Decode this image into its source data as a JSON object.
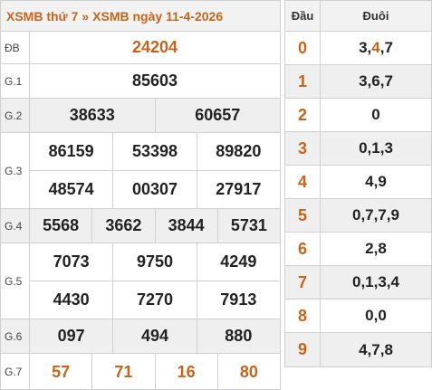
{
  "header": {
    "link1": "XSMB thứ 7",
    "separator": "»",
    "link2": "XSMB ngày 11-4-2026"
  },
  "prizes": [
    {
      "label": "ĐB",
      "lines": [
        [
          "24204"
        ]
      ],
      "special": true
    },
    {
      "label": "G.1",
      "lines": [
        [
          "85603"
        ]
      ]
    },
    {
      "label": "G.2",
      "lines": [
        [
          "38633",
          "60657"
        ]
      ],
      "shade": true
    },
    {
      "label": "G.3",
      "lines": [
        [
          "86159",
          "53398",
          "89820"
        ],
        [
          "48574",
          "00307",
          "27917"
        ]
      ]
    },
    {
      "label": "G.4",
      "lines": [
        [
          "5568",
          "3662",
          "3844",
          "5731"
        ]
      ],
      "shade": true
    },
    {
      "label": "G.5",
      "lines": [
        [
          "7073",
          "9750",
          "4249"
        ],
        [
          "4430",
          "7270",
          "7913"
        ]
      ]
    },
    {
      "label": "G.6",
      "lines": [
        [
          "097",
          "494",
          "880"
        ]
      ],
      "shade": true
    },
    {
      "label": "G.7",
      "lines": [
        [
          "57",
          "71",
          "16",
          "80"
        ]
      ],
      "g7": true
    }
  ],
  "loto": {
    "head_label": "Đầu",
    "tail_label": "Đuôi",
    "rows": [
      {
        "head": "0",
        "tail": [
          {
            "t": "3,"
          },
          {
            "t": "4",
            "hl": true
          },
          {
            "t": ",7"
          }
        ]
      },
      {
        "head": "1",
        "tail": [
          {
            "t": "3,6,7"
          }
        ]
      },
      {
        "head": "2",
        "tail": [
          {
            "t": "0"
          }
        ]
      },
      {
        "head": "3",
        "tail": [
          {
            "t": "0,1,3"
          }
        ]
      },
      {
        "head": "4",
        "tail": [
          {
            "t": "4,9"
          }
        ]
      },
      {
        "head": "5",
        "tail": [
          {
            "t": "0,7,7,9"
          }
        ]
      },
      {
        "head": "6",
        "tail": [
          {
            "t": "2,8"
          }
        ]
      },
      {
        "head": "7",
        "tail": [
          {
            "t": "0,1,3,4"
          }
        ]
      },
      {
        "head": "8",
        "tail": [
          {
            "t": "0,0"
          }
        ]
      },
      {
        "head": "9",
        "tail": [
          {
            "t": "4,7,8"
          }
        ]
      }
    ]
  },
  "colors": {
    "accent": "#c8641a",
    "shade": "#efefef",
    "border": "#d0d0d0"
  }
}
